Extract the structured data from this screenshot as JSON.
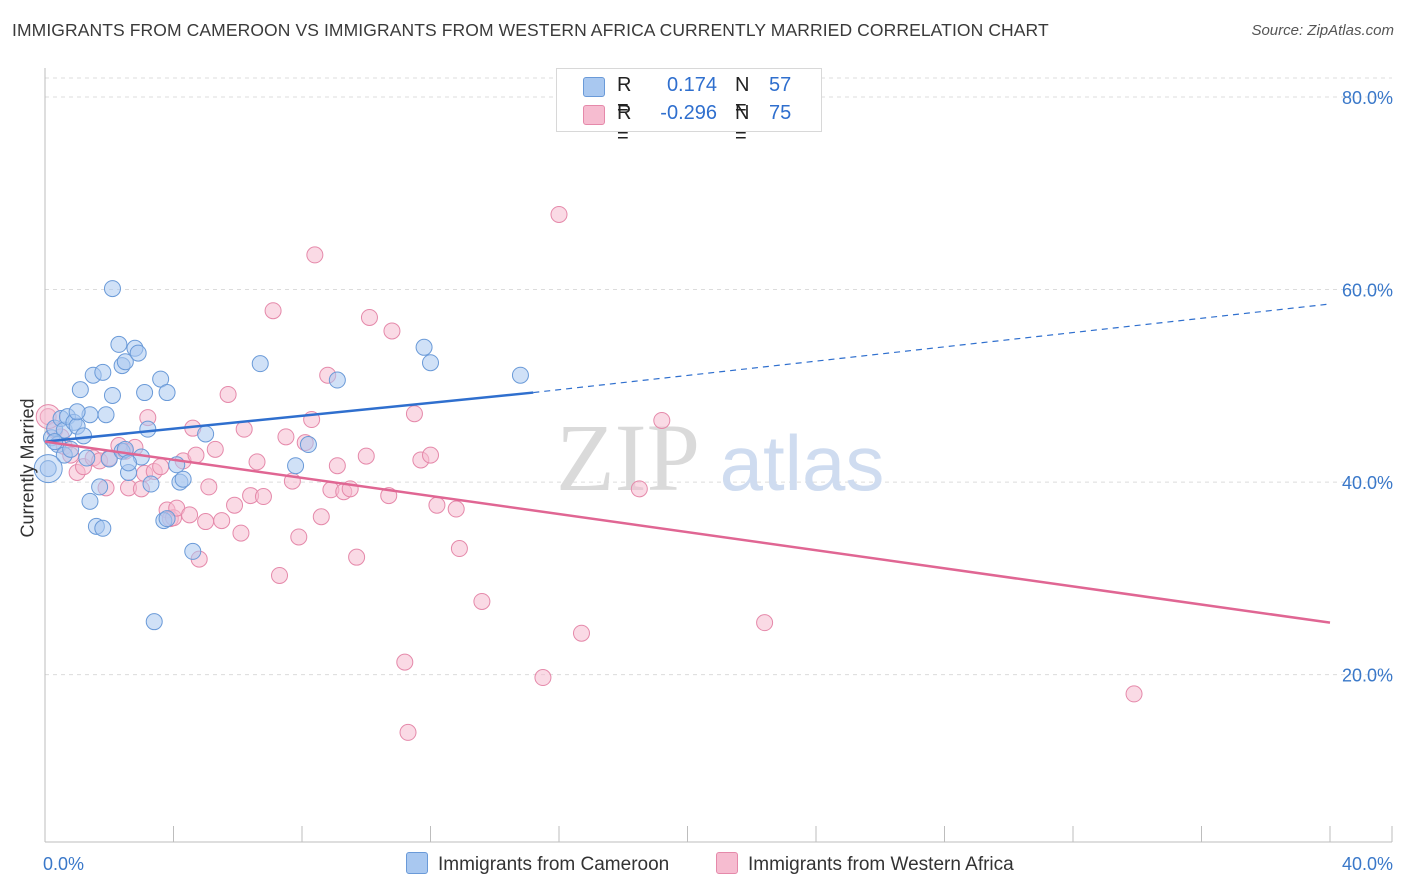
{
  "title": "IMMIGRANTS FROM CAMEROON VS IMMIGRANTS FROM WESTERN AFRICA CURRENTLY MARRIED CORRELATION CHART",
  "source": "Source: ZipAtlas.com",
  "watermark": {
    "zip": "ZIP",
    "atlas": "atlas"
  },
  "legend": {
    "r_label": "R =",
    "n_label": "N =",
    "rows": [
      {
        "r": "0.174",
        "n": "57"
      },
      {
        "r": "-0.296",
        "n": "75"
      }
    ]
  },
  "colors": {
    "blue_fill": "#a9c8f0",
    "blue_stroke": "#6a9ad8",
    "blue_line": "#2f6fce",
    "pink_fill": "#f6bcd0",
    "pink_stroke": "#e589aa",
    "pink_line": "#e06693",
    "axis_label": "#3a78c9",
    "grid": "#dcdcdc"
  },
  "chart_data": {
    "type": "scatter",
    "title": "IMMIGRANTS FROM CAMEROON VS IMMIGRANTS FROM WESTERN AFRICA CURRENTLY MARRIED CORRELATION CHART",
    "xlabel": "",
    "ylabel": "Currently Married",
    "xlim": [
      0,
      40
    ],
    "ylim": [
      0,
      85
    ],
    "x_tick_labels": [
      "0.0%",
      "40.0%"
    ],
    "y_ticks": [
      20,
      40,
      60,
      80
    ],
    "y_tick_labels": [
      "20.0%",
      "40.0%",
      "60.0%",
      "80.0%"
    ],
    "grid": true,
    "legend_position": "top-center",
    "series": [
      {
        "name": "Immigrants from Cameroon",
        "color": "#a9c8f0",
        "trend": {
          "x": [
            0,
            15.2
          ],
          "y": [
            44.2,
            49.3
          ],
          "dashed_to": [
            40,
            58.5
          ]
        },
        "points": [
          [
            0.1,
            41.4
          ],
          [
            0.2,
            44.6
          ],
          [
            0.3,
            45.6
          ],
          [
            0.4,
            43.9
          ],
          [
            0.5,
            46.6
          ],
          [
            0.6,
            45.4
          ],
          [
            0.6,
            42.8
          ],
          [
            0.7,
            46.8
          ],
          [
            0.8,
            43.4
          ],
          [
            0.9,
            46.2
          ],
          [
            1.0,
            45.8
          ],
          [
            1.1,
            49.6
          ],
          [
            1.2,
            44.8
          ],
          [
            1.3,
            42.5
          ],
          [
            1.4,
            38.0
          ],
          [
            1.4,
            47.0
          ],
          [
            1.5,
            51.1
          ],
          [
            1.6,
            35.4
          ],
          [
            1.7,
            39.5
          ],
          [
            1.8,
            35.2
          ],
          [
            1.8,
            51.4
          ],
          [
            1.9,
            47.0
          ],
          [
            2.0,
            42.4
          ],
          [
            2.1,
            60.1
          ],
          [
            2.1,
            49.0
          ],
          [
            2.3,
            54.3
          ],
          [
            2.4,
            43.2
          ],
          [
            2.4,
            52.1
          ],
          [
            2.5,
            43.4
          ],
          [
            2.5,
            52.5
          ],
          [
            2.6,
            41.0
          ],
          [
            2.8,
            53.9
          ],
          [
            2.9,
            53.4
          ],
          [
            3.0,
            42.6
          ],
          [
            3.1,
            49.3
          ],
          [
            3.2,
            45.5
          ],
          [
            3.3,
            39.8
          ],
          [
            3.4,
            25.5
          ],
          [
            3.6,
            50.7
          ],
          [
            3.7,
            36.0
          ],
          [
            3.8,
            36.2
          ],
          [
            3.8,
            49.3
          ],
          [
            4.1,
            41.8
          ],
          [
            4.2,
            40.0
          ],
          [
            4.3,
            40.3
          ],
          [
            4.6,
            32.8
          ],
          [
            5.0,
            45.0
          ],
          [
            6.7,
            52.3
          ],
          [
            7.8,
            41.7
          ],
          [
            8.2,
            43.9
          ],
          [
            9.1,
            50.6
          ],
          [
            11.8,
            54.0
          ],
          [
            12.0,
            52.4
          ],
          [
            14.8,
            51.1
          ],
          [
            0.3,
            44.2
          ],
          [
            1.0,
            47.3
          ],
          [
            2.6,
            42.0
          ]
        ]
      },
      {
        "name": "Immigrants from Western Africa",
        "color": "#f6bcd0",
        "trend": {
          "x": [
            0,
            40
          ],
          "y": [
            44.2,
            25.4
          ]
        },
        "points": [
          [
            0.1,
            46.8
          ],
          [
            0.3,
            45.4
          ],
          [
            0.5,
            44.7
          ],
          [
            0.6,
            43.7
          ],
          [
            0.8,
            42.8
          ],
          [
            1.0,
            41.0
          ],
          [
            1.2,
            41.6
          ],
          [
            1.5,
            42.5
          ],
          [
            1.7,
            42.2
          ],
          [
            1.9,
            39.4
          ],
          [
            2.0,
            42.5
          ],
          [
            2.3,
            43.8
          ],
          [
            2.5,
            43.2
          ],
          [
            2.6,
            39.4
          ],
          [
            2.8,
            43.6
          ],
          [
            3.0,
            39.3
          ],
          [
            3.1,
            40.9
          ],
          [
            3.2,
            46.7
          ],
          [
            3.4,
            41.1
          ],
          [
            3.6,
            41.6
          ],
          [
            3.8,
            37.1
          ],
          [
            3.9,
            36.2
          ],
          [
            4.0,
            36.3
          ],
          [
            4.1,
            37.3
          ],
          [
            4.3,
            42.2
          ],
          [
            4.5,
            36.6
          ],
          [
            4.6,
            45.6
          ],
          [
            4.7,
            42.8
          ],
          [
            4.8,
            32.0
          ],
          [
            5.0,
            35.9
          ],
          [
            5.1,
            39.5
          ],
          [
            5.3,
            43.4
          ],
          [
            5.5,
            36.0
          ],
          [
            5.7,
            49.1
          ],
          [
            5.9,
            37.6
          ],
          [
            6.1,
            34.7
          ],
          [
            6.2,
            45.5
          ],
          [
            6.4,
            38.6
          ],
          [
            6.6,
            42.1
          ],
          [
            6.8,
            38.5
          ],
          [
            7.1,
            57.8
          ],
          [
            7.3,
            30.3
          ],
          [
            7.5,
            44.7
          ],
          [
            7.7,
            40.1
          ],
          [
            7.9,
            34.3
          ],
          [
            8.1,
            44.1
          ],
          [
            8.3,
            46.5
          ],
          [
            8.4,
            63.6
          ],
          [
            8.6,
            36.4
          ],
          [
            8.8,
            51.1
          ],
          [
            8.9,
            39.2
          ],
          [
            9.1,
            41.7
          ],
          [
            9.3,
            39.0
          ],
          [
            9.5,
            39.3
          ],
          [
            9.7,
            32.2
          ],
          [
            10.0,
            42.7
          ],
          [
            10.1,
            57.1
          ],
          [
            10.7,
            38.6
          ],
          [
            10.8,
            55.7
          ],
          [
            11.2,
            21.3
          ],
          [
            11.3,
            14.0
          ],
          [
            11.5,
            47.1
          ],
          [
            11.7,
            42.3
          ],
          [
            12.0,
            42.8
          ],
          [
            12.2,
            37.6
          ],
          [
            12.8,
            37.2
          ],
          [
            12.9,
            33.1
          ],
          [
            13.6,
            27.6
          ],
          [
            15.5,
            19.7
          ],
          [
            16.0,
            67.8
          ],
          [
            16.7,
            24.3
          ],
          [
            18.5,
            39.3
          ],
          [
            19.2,
            46.4
          ],
          [
            22.4,
            25.4
          ],
          [
            33.9,
            18.0
          ]
        ]
      }
    ]
  }
}
